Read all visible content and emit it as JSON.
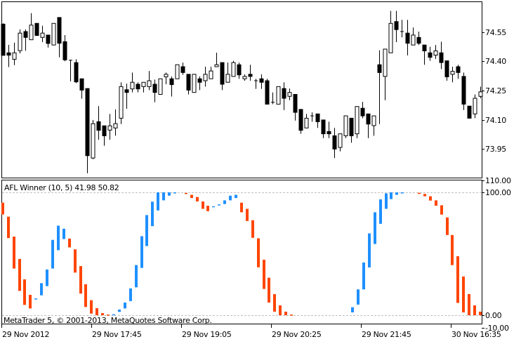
{
  "chart_data": [
    {
      "type": "candlestick",
      "pane": "main",
      "y_ticks": [
        "74.55",
        "74.40",
        "74.25",
        "74.10",
        "73.95"
      ],
      "ylim": [
        73.82,
        74.67
      ],
      "grid": false,
      "colors": {
        "bull": "#ffffff",
        "bear": "#000000",
        "outline": "#000000"
      },
      "candles_ohlc": [
        [
          74.59,
          74.594,
          74.43,
          74.43
        ],
        [
          74.443,
          74.484,
          74.37,
          74.431
        ],
        [
          74.41,
          74.495,
          74.38,
          74.443
        ],
        [
          74.454,
          74.563,
          74.44,
          74.544
        ],
        [
          74.552,
          74.563,
          74.454,
          74.522
        ],
        [
          74.51,
          74.646,
          74.51,
          74.585
        ],
        [
          74.594,
          74.594,
          74.532,
          74.532
        ],
        [
          74.522,
          74.582,
          74.498,
          74.544
        ],
        [
          74.534,
          74.534,
          74.47,
          74.491
        ],
        [
          74.483,
          74.594,
          74.483,
          74.594
        ],
        [
          74.624,
          74.624,
          74.42,
          74.492
        ],
        [
          74.5,
          74.534,
          74.4,
          74.407
        ],
        [
          74.405,
          74.408,
          74.297,
          74.405
        ],
        [
          74.393,
          74.41,
          74.288,
          74.294
        ],
        [
          74.31,
          74.31,
          74.208,
          74.252
        ],
        [
          74.26,
          74.26,
          73.826,
          73.916
        ],
        [
          73.904,
          74.099,
          73.898,
          74.08
        ],
        [
          74.09,
          74.17,
          73.998,
          74.046
        ],
        [
          74.069,
          74.069,
          73.967,
          74.018
        ],
        [
          74.047,
          74.13,
          73.998,
          74.069
        ],
        [
          74.058,
          74.153,
          74.018,
          74.08
        ],
        [
          74.108,
          74.292,
          74.078,
          74.27
        ],
        [
          74.254,
          74.285,
          74.156,
          74.24
        ],
        [
          74.258,
          74.342,
          74.24,
          74.292
        ],
        [
          74.282,
          74.292,
          74.24,
          74.258
        ],
        [
          74.27,
          74.292,
          74.24,
          74.292
        ],
        [
          74.27,
          74.35,
          74.252,
          74.3
        ],
        [
          74.282,
          74.306,
          74.19,
          74.24
        ],
        [
          74.23,
          74.31,
          74.23,
          74.31
        ],
        [
          74.32,
          74.342,
          74.282,
          74.333
        ],
        [
          74.31,
          74.322,
          74.219,
          74.28
        ],
        [
          74.31,
          74.382,
          74.31,
          74.382
        ],
        [
          74.372,
          74.393,
          74.33,
          74.342
        ],
        [
          74.333,
          74.333,
          74.23,
          74.252
        ],
        [
          74.24,
          74.333,
          74.24,
          74.333
        ],
        [
          74.31,
          74.322,
          74.252,
          74.292
        ],
        [
          74.3,
          74.372,
          74.27,
          74.333
        ],
        [
          74.31,
          74.372,
          74.31,
          74.35
        ],
        [
          74.372,
          74.444,
          74.372,
          74.382
        ],
        [
          74.393,
          74.393,
          74.252,
          74.282
        ],
        [
          74.292,
          74.393,
          74.292,
          74.333
        ],
        [
          74.322,
          74.402,
          74.322,
          74.393
        ],
        [
          74.382,
          74.393,
          74.31,
          74.33
        ],
        [
          74.31,
          74.333,
          74.3,
          74.322
        ],
        [
          74.333,
          74.382,
          74.3,
          74.322
        ],
        [
          74.3,
          74.31,
          74.258,
          74.3
        ],
        [
          74.31,
          74.333,
          74.258,
          74.292
        ],
        [
          74.3,
          74.31,
          74.18,
          74.18
        ],
        [
          74.19,
          74.24,
          74.18,
          74.19
        ],
        [
          74.18,
          74.27,
          74.18,
          74.27
        ],
        [
          74.26,
          74.292,
          74.15,
          74.21
        ],
        [
          74.22,
          74.26,
          74.2,
          74.24
        ],
        [
          74.23,
          74.23,
          74.096,
          74.138
        ],
        [
          74.153,
          74.153,
          74.028,
          74.046
        ],
        [
          74.058,
          74.13,
          74.058,
          74.108
        ],
        [
          74.12,
          74.138,
          74.09,
          74.12
        ],
        [
          74.13,
          74.13,
          74.058,
          74.09
        ],
        [
          74.099,
          74.099,
          74.006,
          74.028
        ],
        [
          74.04,
          74.09,
          74.006,
          74.028
        ],
        [
          74.018,
          74.058,
          73.904,
          73.95
        ],
        [
          73.958,
          74.028,
          73.938,
          74.028
        ],
        [
          74.018,
          74.12,
          74.006,
          74.12
        ],
        [
          74.108,
          74.108,
          73.982,
          74.018
        ],
        [
          74.028,
          74.168,
          74.006,
          74.168
        ],
        [
          74.159,
          74.192,
          74.108,
          74.12
        ],
        [
          74.13,
          74.13,
          74.006,
          74.078
        ],
        [
          74.07,
          74.12,
          74.018,
          74.12
        ],
        [
          74.382,
          74.456,
          74.078,
          74.342
        ],
        [
          74.322,
          74.462,
          74.2,
          74.462
        ],
        [
          74.443,
          74.658,
          74.443,
          74.594
        ],
        [
          74.603,
          74.658,
          74.498,
          74.562
        ],
        [
          74.552,
          74.612,
          74.522,
          74.552
        ],
        [
          74.544,
          74.612,
          74.43,
          74.492
        ],
        [
          74.483,
          74.573,
          74.483,
          74.534
        ],
        [
          74.522,
          74.552,
          74.483,
          74.492
        ],
        [
          74.483,
          74.483,
          74.382,
          74.453
        ],
        [
          74.443,
          74.474,
          74.402,
          74.42
        ],
        [
          74.431,
          74.483,
          74.412,
          74.453
        ],
        [
          74.443,
          74.5,
          74.36,
          74.393
        ],
        [
          74.402,
          74.402,
          74.3,
          74.32
        ],
        [
          74.333,
          74.372,
          74.292,
          74.348
        ],
        [
          74.372,
          74.382,
          74.31,
          74.342
        ],
        [
          74.322,
          74.342,
          74.15,
          74.18
        ],
        [
          74.17,
          74.17,
          74.108,
          74.108
        ],
        [
          74.13,
          74.23,
          74.108,
          74.21
        ],
        [
          74.22,
          74.27,
          74.21,
          74.243
        ]
      ]
    },
    {
      "type": "color_histogram",
      "pane": "indicator",
      "title": "AFL Winner (10, 5) 41.98 50.82",
      "y_ticks": [
        "110.00",
        "100.00",
        "0.00",
        "-10.00"
      ],
      "ylim": [
        -10,
        110
      ],
      "levels": [
        100,
        0
      ],
      "colors": {
        "u": "#1E90FF",
        "d": "#FF4500",
        "level": "#C0C0C0"
      },
      "bars_low_high_dir": [
        [
          82,
          91.6,
          "d"
        ],
        [
          62.8,
          80.2,
          "d"
        ],
        [
          38,
          64,
          "d"
        ],
        [
          19.8,
          45.8,
          "d"
        ],
        [
          8.4,
          29.2,
          "d"
        ],
        [
          5.5,
          16.6,
          "d"
        ],
        [
          13.2,
          13.6,
          "u"
        ],
        [
          16.2,
          26.1,
          "u"
        ],
        [
          23.7,
          37.2,
          "u"
        ],
        [
          38,
          61.3,
          "u"
        ],
        [
          52.9,
          72.9,
          "u"
        ],
        [
          62,
          70.4,
          "u"
        ],
        [
          55.2,
          62.4,
          "d"
        ],
        [
          34.7,
          53.6,
          "d"
        ],
        [
          17.6,
          40,
          "d"
        ],
        [
          6.7,
          25.2,
          "d"
        ],
        [
          1.3,
          12.2,
          "d"
        ],
        [
          0,
          5.7,
          "d"
        ],
        [
          0,
          1.7,
          "d"
        ],
        [
          0,
          0.5,
          "d"
        ],
        [
          0,
          0.8,
          "u"
        ],
        [
          2.7,
          4.6,
          "u"
        ],
        [
          5.5,
          10.3,
          "u"
        ],
        [
          11.5,
          21.8,
          "u"
        ],
        [
          22.7,
          40.8,
          "u"
        ],
        [
          38.5,
          64.3,
          "u"
        ],
        [
          56.3,
          81.5,
          "u"
        ],
        [
          72.5,
          92.4,
          "u"
        ],
        [
          85.3,
          100,
          "u"
        ],
        [
          93.5,
          100,
          "u"
        ],
        [
          97.3,
          100,
          "u"
        ],
        [
          99.6,
          100,
          "u"
        ],
        null,
        [
          99,
          99.5,
          "d"
        ],
        [
          95.4,
          98,
          "d"
        ],
        [
          92.6,
          96.2,
          "d"
        ],
        [
          86.6,
          92.6,
          "d"
        ],
        [
          84.7,
          89.1,
          "d"
        ],
        [
          88.2,
          88.7,
          "u"
        ],
        [
          89.7,
          90.2,
          "u"
        ],
        [
          90.5,
          93.5,
          "u"
        ],
        [
          93.5,
          97.3,
          "u"
        ],
        [
          95.4,
          98,
          "u"
        ],
        [
          83.8,
          91.6,
          "d"
        ],
        [
          76.7,
          86.6,
          "d"
        ],
        [
          63,
          77.3,
          "d"
        ],
        [
          39,
          62.6,
          "d"
        ],
        [
          21.4,
          45.2,
          "d"
        ],
        [
          10.3,
          30.5,
          "d"
        ],
        [
          2.9,
          17.2,
          "d"
        ],
        [
          0,
          8,
          "d"
        ],
        [
          0,
          2.9,
          "d"
        ],
        [
          0,
          0.5,
          "d"
        ],
        null,
        null,
        null,
        null,
        null,
        null,
        null,
        null,
        null,
        null,
        [
          2.3,
          6.5,
          "u"
        ],
        [
          8.6,
          21,
          "u"
        ],
        [
          21,
          42.9,
          "u"
        ],
        [
          38.9,
          66.6,
          "u"
        ],
        [
          58,
          83.8,
          "u"
        ],
        [
          74.4,
          94.3,
          "u"
        ],
        [
          86.6,
          99.2,
          "u"
        ],
        [
          94.5,
          100,
          "u"
        ],
        [
          98,
          100,
          "u"
        ],
        [
          99.6,
          100,
          "u"
        ],
        null,
        null,
        [
          99.2,
          99.6,
          "d"
        ],
        [
          96.8,
          98.7,
          "d"
        ],
        [
          93.3,
          96.8,
          "d"
        ],
        [
          89.1,
          93.5,
          "d"
        ],
        [
          81.9,
          89.5,
          "d"
        ],
        [
          65.3,
          79.6,
          "d"
        ],
        [
          40.8,
          65.3,
          "d"
        ],
        [
          10,
          48,
          "d"
        ],
        [
          2.3,
          31.5,
          "d"
        ],
        [
          0,
          17.2,
          "d"
        ],
        [
          0,
          8,
          "d"
        ],
        [
          0,
          2.9,
          "d"
        ]
      ]
    }
  ],
  "x_ticks": [
    "29 Nov 2012",
    "29 Nov 17:45",
    "29 Nov 19:05",
    "29 Nov 20:25",
    "29 Nov 21:45",
    "30 Nov 16:35"
  ],
  "footer": "MetaTrader 5, © 2001-2013, MetaQuotes Software Corp."
}
